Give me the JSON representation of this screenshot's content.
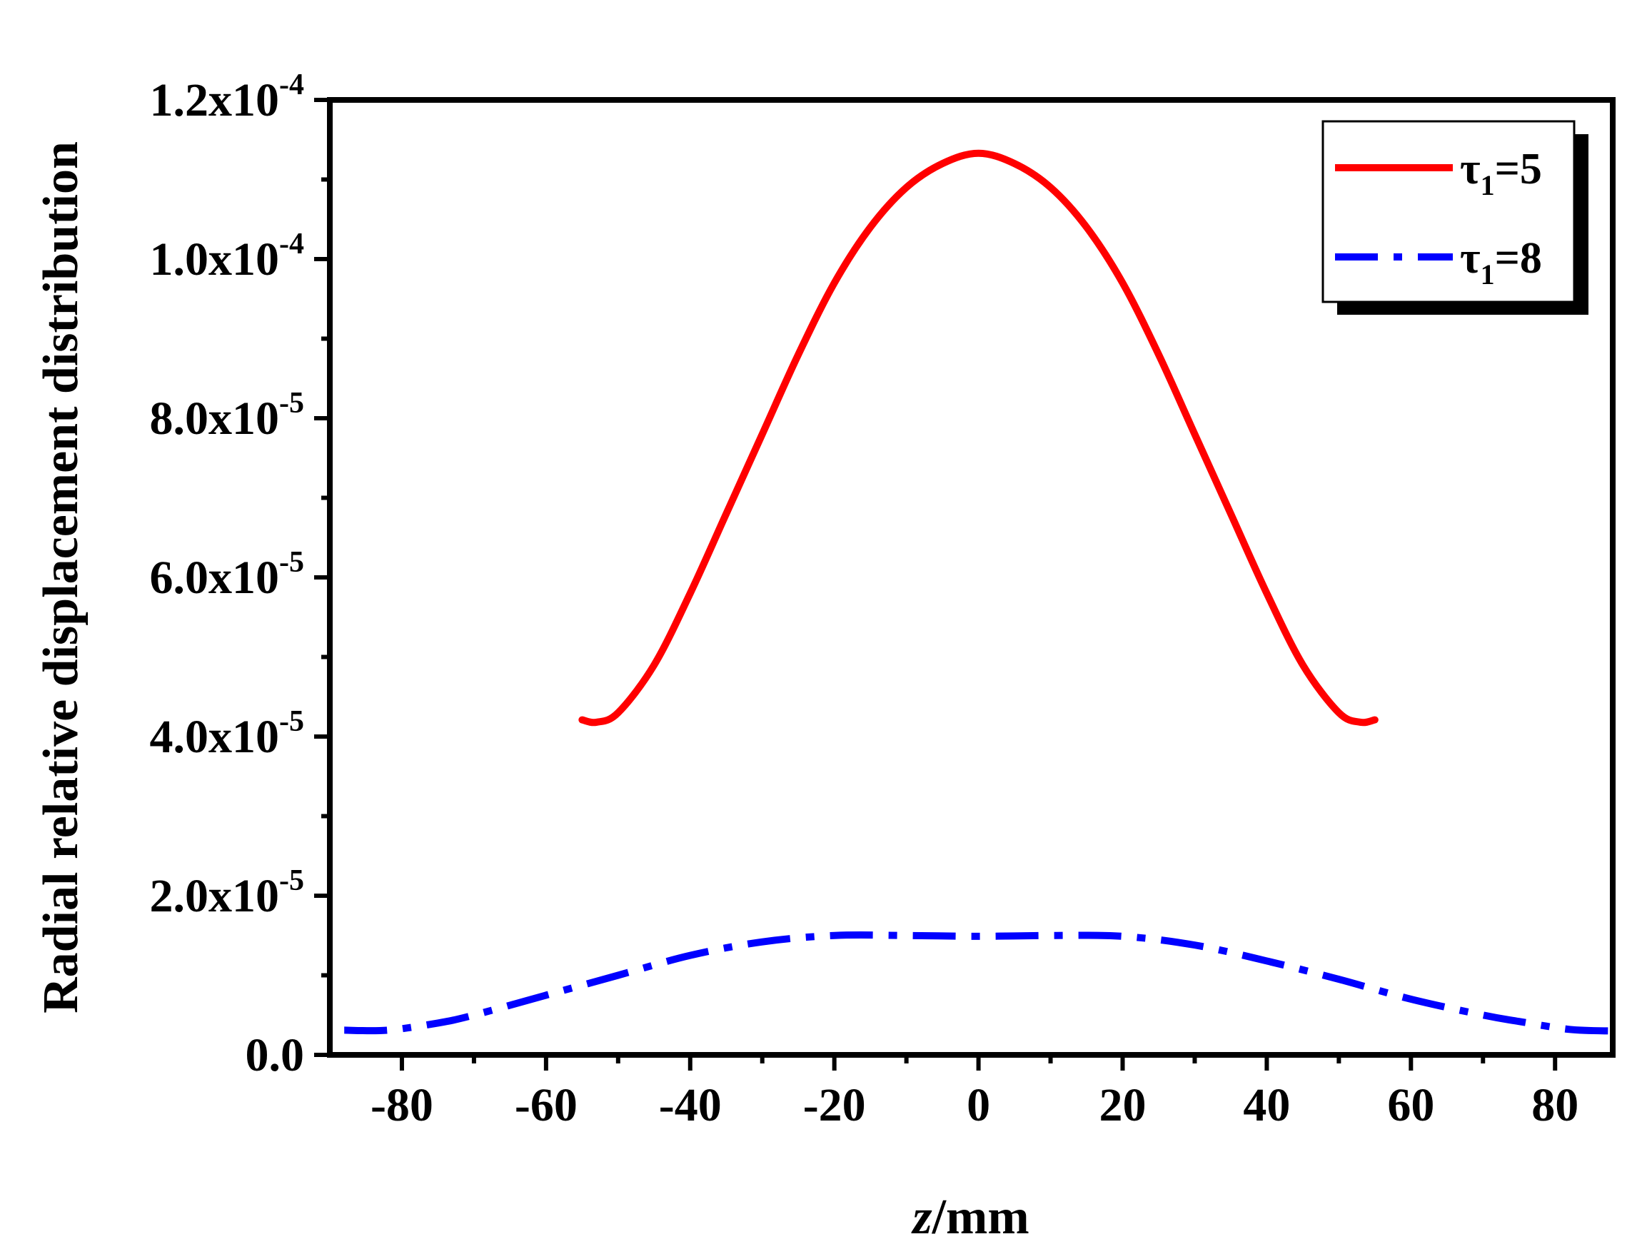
{
  "chart_data": {
    "type": "line",
    "title": "",
    "xlabel_italic": "z",
    "xlabel_rest": "/mm",
    "ylabel": "Radial relative displacement distribution",
    "xlim": [
      -90,
      88
    ],
    "ylim": [
      0,
      0.00012
    ],
    "x_ticks": [
      -80,
      -60,
      -40,
      -20,
      0,
      20,
      40,
      60,
      80
    ],
    "x_tick_labels": [
      "-80",
      "-60",
      "-40",
      "-20",
      "0",
      "20",
      "40",
      "60",
      "80"
    ],
    "y_ticks": [
      0,
      2e-05,
      4e-05,
      6e-05,
      8e-05,
      0.0001,
      0.00012
    ],
    "y_tick_labels": [
      {
        "mantissa": "0.0",
        "exponent": ""
      },
      {
        "mantissa": "2.0x10",
        "exponent": "-5"
      },
      {
        "mantissa": "4.0x10",
        "exponent": "-5"
      },
      {
        "mantissa": "6.0x10",
        "exponent": "-5"
      },
      {
        "mantissa": "8.0x10",
        "exponent": "-5"
      },
      {
        "mantissa": "1.0x10",
        "exponent": "-4"
      },
      {
        "mantissa": "1.2x10",
        "exponent": "-4"
      }
    ],
    "legend_position": "top-right",
    "series": [
      {
        "name": "τ1=5",
        "label_main": "τ",
        "label_sub": "1",
        "label_tail": "=5",
        "color": "#ff0000",
        "style": "solid",
        "x": [
          -55,
          -53,
          -50,
          -45,
          -40,
          -35,
          -30,
          -25,
          -20,
          -15,
          -10,
          -5,
          0,
          5,
          10,
          15,
          20,
          25,
          30,
          35,
          40,
          45,
          50,
          53,
          55
        ],
        "y": [
          4.21e-05,
          4.18e-05,
          4.3e-05,
          4.9e-05,
          5.8e-05,
          6.8e-05,
          7.8e-05,
          8.8e-05,
          9.7e-05,
          0.000104,
          0.000109,
          0.000112,
          0.0001133,
          0.000112,
          0.000109,
          0.000104,
          9.7e-05,
          8.8e-05,
          7.8e-05,
          6.8e-05,
          5.8e-05,
          4.9e-05,
          4.3e-05,
          4.18e-05,
          4.21e-05
        ]
      },
      {
        "name": "τ1=8",
        "label_main": "τ",
        "label_sub": "1",
        "label_tail": "=8",
        "color": "#0000ff",
        "style": "dash-dot",
        "x": [
          -88,
          -82,
          -75,
          -70,
          -60,
          -50,
          -40,
          -30,
          -20,
          -10,
          0,
          10,
          20,
          30,
          40,
          50,
          60,
          70,
          75,
          82,
          88
        ],
        "y": [
          3.1e-06,
          3.1e-06,
          4e-06,
          5e-06,
          7.5e-06,
          1e-05,
          1.25e-05,
          1.42e-05,
          1.5e-05,
          1.5e-05,
          1.49e-05,
          1.5e-05,
          1.49e-05,
          1.38e-05,
          1.18e-05,
          9.5e-06,
          7e-06,
          5e-06,
          4.2e-06,
          3.2e-06,
          3e-06
        ]
      }
    ]
  }
}
